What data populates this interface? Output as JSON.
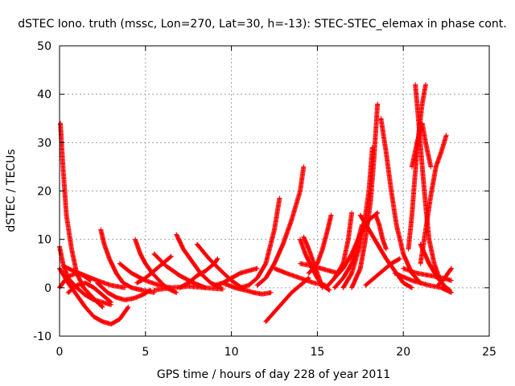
{
  "chart_data": {
    "type": "scatter",
    "title": "dSTEC Iono. truth (mssc, Lon=270, Lat=30, h=-13): STEC-STEC_elemax in phase cont.",
    "xlabel": "GPS time / hours of day 228 of year 2011",
    "ylabel": "dSTEC  / TECUs",
    "xlim": [
      0,
      25
    ],
    "ylim": [
      -10,
      50
    ],
    "xticks": [
      0,
      5,
      10,
      15,
      20,
      25
    ],
    "yticks": [
      -10,
      0,
      10,
      20,
      30,
      40,
      50
    ],
    "grid": true,
    "marker": "+",
    "colors": {
      "series": "#ff0000",
      "axis": "#000000",
      "grid": "#a0a0a0",
      "background": "#ffffff"
    },
    "series": [
      {
        "x": [
          0.05,
          0.2,
          0.4,
          0.7,
          1.0,
          1.4,
          1.8,
          2.2,
          2.5
        ],
        "y": [
          34,
          25,
          15,
          8,
          3,
          0,
          -1.5,
          -3,
          -4
        ]
      },
      {
        "x": [
          0,
          0.2,
          0.5,
          1.0,
          1.5,
          2.0,
          2.5,
          3.0
        ],
        "y": [
          8.5,
          5,
          2,
          0,
          -1.5,
          -2.5,
          -3,
          -3.5
        ]
      },
      {
        "x": [
          0,
          0.5,
          1.0,
          1.5,
          2.0,
          2.5,
          3.0,
          3.5,
          4.0
        ],
        "y": [
          4,
          1,
          -1.5,
          -4,
          -6,
          -7,
          -7.5,
          -6.5,
          -4
        ]
      },
      {
        "x": [
          0,
          0.3,
          0.6,
          1.0,
          1.4,
          1.8
        ],
        "y": [
          0,
          1.5,
          2.5,
          3,
          2.5,
          1.5
        ]
      },
      {
        "x": [
          0.2,
          0.8,
          1.5,
          2.2,
          3.0,
          3.8
        ],
        "y": [
          4.5,
          3.5,
          2.5,
          1.5,
          0.5,
          0
        ]
      },
      {
        "x": [
          0.5,
          1.0,
          1.5,
          2.0,
          2.5,
          3.0
        ],
        "y": [
          -1,
          0.5,
          1,
          0,
          -1.5,
          -3
        ]
      },
      {
        "x": [
          2.4,
          2.6,
          2.9,
          3.3,
          3.7,
          4.2,
          4.8,
          5.5
        ],
        "y": [
          12,
          9,
          6,
          3,
          1,
          0,
          -0.5,
          -1
        ]
      },
      {
        "x": [
          2.2,
          2.8,
          3.3,
          3.8,
          4.3,
          4.8,
          5.3
        ],
        "y": [
          1,
          -1,
          -2,
          -2.5,
          -2.2,
          -1.5,
          -0.5
        ]
      },
      {
        "x": [
          4.4,
          4.7,
          5.0,
          5.4,
          5.8,
          6.2,
          6.8
        ],
        "y": [
          10,
          7,
          5,
          3,
          1.5,
          0,
          -1
        ]
      },
      {
        "x": [
          3.5,
          4.2,
          5.0,
          5.8,
          6.5
        ],
        "y": [
          5,
          3,
          1.5,
          0.5,
          0
        ]
      },
      {
        "x": [
          4.5,
          5.0,
          5.5,
          6.0,
          6.5
        ],
        "y": [
          1,
          2,
          3.5,
          5,
          6.5
        ]
      },
      {
        "x": [
          5.5,
          6.2,
          7.0,
          7.8,
          8.5
        ],
        "y": [
          7,
          4.5,
          2.5,
          1,
          0
        ]
      },
      {
        "x": [
          6.8,
          7.2,
          7.7,
          8.2,
          8.8,
          9.4
        ],
        "y": [
          11,
          8,
          5.5,
          3,
          1,
          0
        ]
      },
      {
        "x": [
          5.5,
          6.5,
          7.5,
          8.5,
          9.5
        ],
        "y": [
          -0.5,
          0,
          0.3,
          0,
          -0.3
        ]
      },
      {
        "x": [
          7.0,
          7.5,
          8.0,
          8.5,
          9.0,
          9.2
        ],
        "y": [
          0,
          1,
          2.5,
          3.5,
          5,
          6
        ]
      },
      {
        "x": [
          8.0,
          8.7,
          9.4,
          10.0,
          10.6
        ],
        "y": [
          9,
          6,
          3.5,
          1.5,
          0
        ]
      },
      {
        "x": [
          9.0,
          9.5,
          10.0,
          10.5,
          11.0,
          11.5
        ],
        "y": [
          0.5,
          1,
          2,
          3,
          3.5,
          4
        ]
      },
      {
        "x": [
          9.5,
          10.2,
          10.8,
          11.3,
          11.8,
          12.3
        ],
        "y": [
          1,
          0,
          -0.5,
          -1,
          -1.3,
          -1
        ]
      },
      {
        "x": [
          10.5,
          11.0,
          11.5,
          12.0,
          12.5,
          12.8
        ],
        "y": [
          0,
          0.5,
          2,
          5,
          12,
          18.5
        ]
      },
      {
        "x": [
          11.5,
          12.0,
          12.5,
          13.0,
          13.5,
          14.0,
          14.2
        ],
        "y": [
          0.5,
          2,
          5,
          9,
          14,
          20,
          25
        ]
      },
      {
        "x": [
          12.0,
          12.5,
          13.0,
          13.5,
          14.0,
          14.5
        ],
        "y": [
          -7,
          -5,
          -3,
          -1,
          0.5,
          2
        ]
      },
      {
        "x": [
          12.5,
          13.2,
          14.0,
          14.8,
          15.5
        ],
        "y": [
          4,
          3,
          2,
          1,
          0.5
        ]
      },
      {
        "x": [
          14.0,
          14.3,
          14.7,
          15.0,
          15.3,
          15.7
        ],
        "y": [
          10,
          7,
          4,
          2,
          0.5,
          -0.5
        ]
      },
      {
        "x": [
          14.2,
          14.5,
          14.8,
          15.1,
          15.3
        ],
        "y": [
          10.5,
          8,
          5,
          2,
          0
        ]
      },
      {
        "x": [
          14.0,
          14.7,
          15.2,
          15.7,
          16.2
        ],
        "y": [
          5,
          4.5,
          4,
          3.5,
          3
        ]
      },
      {
        "x": [
          14.5,
          15.0,
          15.3,
          15.6,
          15.8
        ],
        "y": [
          3,
          5,
          8,
          12,
          15
        ]
      },
      {
        "x": [
          15.5,
          16.0,
          16.5,
          16.8,
          17.0
        ],
        "y": [
          0,
          2,
          5,
          10,
          15.5
        ]
      },
      {
        "x": [
          16.0,
          16.5,
          17.0,
          17.3,
          17.6
        ],
        "y": [
          0,
          2,
          5,
          9,
          13
        ]
      },
      {
        "x": [
          16.5,
          17.0,
          17.5,
          17.8,
          18.0,
          18.2
        ],
        "y": [
          0,
          3,
          9,
          15,
          20,
          29
        ]
      },
      {
        "x": [
          17.0,
          17.5,
          17.8,
          18.1,
          18.3,
          18.5
        ],
        "y": [
          0,
          4,
          10,
          18,
          27,
          38
        ]
      },
      {
        "x": [
          16.0,
          16.5,
          17.0,
          17.5,
          18.0,
          18.5
        ],
        "y": [
          2,
          4,
          7,
          11,
          14,
          15.5
        ]
      },
      {
        "x": [
          17.5,
          18.0,
          18.5,
          19.0,
          19.5,
          20.0,
          20.5
        ],
        "y": [
          15,
          12,
          9,
          6,
          3.5,
          1,
          0
        ]
      },
      {
        "x": [
          18.7,
          19.0,
          19.3,
          19.6,
          20.0,
          20.5,
          21.0
        ],
        "y": [
          35,
          28,
          20,
          13,
          7,
          3,
          1
        ]
      },
      {
        "x": [
          18.4,
          18.6,
          18.8,
          19.0
        ],
        "y": [
          15,
          13,
          10,
          8
        ]
      },
      {
        "x": [
          17.8,
          18.3,
          18.8,
          19.3,
          19.8
        ],
        "y": [
          0.5,
          2,
          3.5,
          5,
          6
        ]
      },
      {
        "x": [
          20.3,
          20.5,
          20.7,
          20.9,
          21.1,
          21.3
        ],
        "y": [
          8,
          15,
          24,
          32,
          38,
          42
        ]
      },
      {
        "x": [
          20.7,
          20.9,
          21.1,
          21.3,
          21.5,
          21.8,
          22.2
        ],
        "y": [
          42,
          34,
          25,
          17,
          10,
          5,
          1
        ]
      },
      {
        "x": [
          20.5,
          20.8,
          21.1,
          21.3,
          21.6
        ],
        "y": [
          25,
          30,
          34,
          30,
          25
        ]
      },
      {
        "x": [
          21.0,
          21.3,
          21.6,
          21.9,
          22.2,
          22.5
        ],
        "y": [
          5,
          12,
          19,
          25,
          28,
          31.5
        ]
      },
      {
        "x": [
          21.0,
          21.5,
          22.0,
          22.5,
          22.7
        ],
        "y": [
          9,
          5,
          2,
          0,
          -0.5
        ]
      },
      {
        "x": [
          19.5,
          20.5,
          21.5,
          22.2,
          22.8
        ],
        "y": [
          3,
          1.5,
          0.5,
          0,
          -1
        ]
      },
      {
        "x": [
          22.0,
          22.3,
          22.6,
          22.8
        ],
        "y": [
          0.5,
          1.5,
          3,
          4
        ]
      },
      {
        "x": [
          20.0,
          20.8,
          21.6,
          22.3,
          22.8
        ],
        "y": [
          4,
          3,
          2.5,
          2,
          1.5
        ]
      }
    ]
  }
}
